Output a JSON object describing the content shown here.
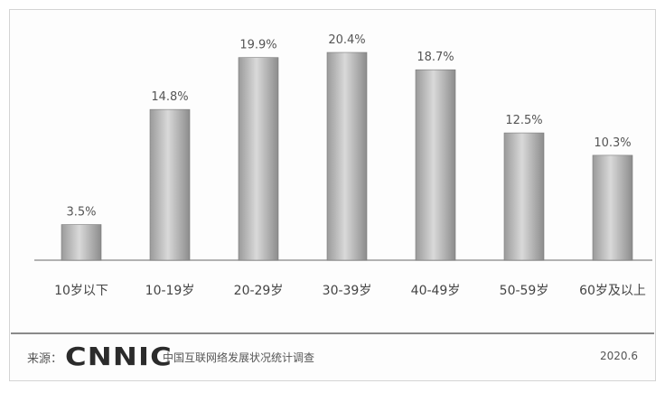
{
  "chart_data": {
    "type": "bar",
    "categories": [
      "10岁以下",
      "10-19岁",
      "20-29岁",
      "30-39岁",
      "40-49岁",
      "50-59岁",
      "60岁及以上"
    ],
    "values": [
      3.5,
      14.8,
      19.9,
      20.4,
      18.7,
      12.5,
      10.3
    ],
    "data_labels": [
      "3.5%",
      "14.8%",
      "19.9%",
      "20.4%",
      "18.7%",
      "12.5%",
      "10.3%"
    ],
    "ylim": [
      0,
      22
    ],
    "grid": false,
    "legend": "none",
    "bar_color": "#c8c8c8"
  },
  "footer": {
    "source_label": "来源：",
    "logo_text": "CNNIC",
    "source_name": "中国互联网络发展状况统计调查",
    "date": "2020.6"
  }
}
